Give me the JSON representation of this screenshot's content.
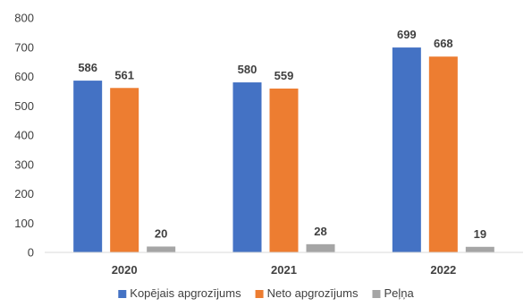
{
  "chart_data": {
    "type": "bar",
    "categories": [
      "2020",
      "2021",
      "2022"
    ],
    "series": [
      {
        "name": "Kopējais apgrozījums",
        "values": [
          586,
          580,
          699
        ],
        "color": "#4472C4"
      },
      {
        "name": "Neto apgrozījums",
        "values": [
          561,
          559,
          668
        ],
        "color": "#ED7D31"
      },
      {
        "name": "Peļņa",
        "values": [
          20,
          28,
          19
        ],
        "color": "#A5A5A5"
      }
    ],
    "ylim": [
      0,
      800
    ],
    "yticks": [
      0,
      100,
      200,
      300,
      400,
      500,
      600,
      700,
      800
    ],
    "grid": false,
    "legend_position": "bottom"
  }
}
